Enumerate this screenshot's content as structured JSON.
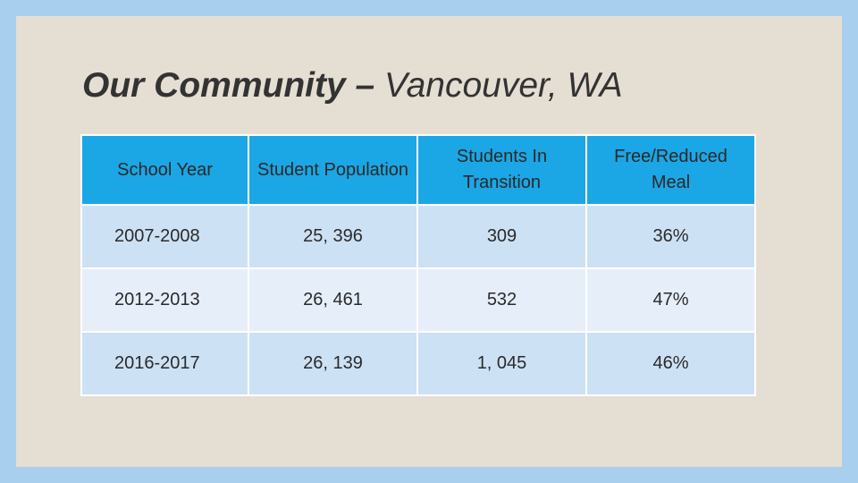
{
  "slide": {
    "title_bold": "Our Community –",
    "title_rest": " Vancouver, WA"
  },
  "table": {
    "headers": [
      "School Year",
      "Student Population",
      "Students In Transition",
      "Free/Reduced Meal"
    ],
    "rows": [
      [
        "2007-2008",
        "25, 396",
        "309",
        "36%"
      ],
      [
        "2012-2013",
        "26, 461",
        "532",
        "47%"
      ],
      [
        "2016-2017",
        "26, 139",
        "1, 045",
        "46%"
      ]
    ]
  },
  "colors": {
    "background": "#a8d0ee",
    "slide": "#e5ded3",
    "header": "#1ba6e5",
    "row_odd": "#cde1f4",
    "row_even": "#e6eef9"
  }
}
